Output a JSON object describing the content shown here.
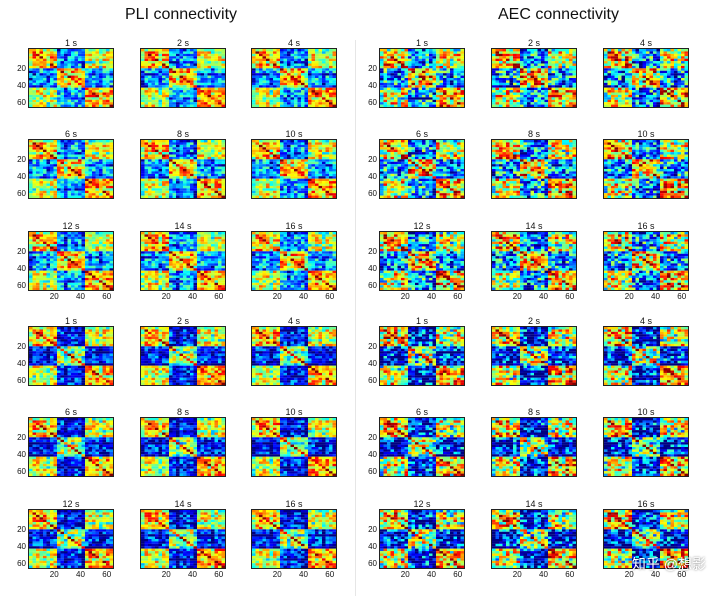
{
  "figure": {
    "titles": {
      "left": "PLI connectivity",
      "right": "AEC connectivity"
    },
    "watermark": "知乎 @想影"
  },
  "chart_data": [
    {
      "type": "heatmap",
      "title": "PLI connectivity",
      "block": "top",
      "colormap": "jet",
      "matrix_size": 64,
      "panel_titles": [
        "1 s",
        "2 s",
        "4 s",
        "6 s",
        "8 s",
        "10 s",
        "12 s",
        "14 s",
        "16 s"
      ],
      "y_ticks": [
        "20",
        "40",
        "60"
      ],
      "x_ticks": [
        "20",
        "40",
        "60"
      ]
    },
    {
      "type": "heatmap",
      "title": "AEC connectivity",
      "block": "top",
      "colormap": "jet",
      "matrix_size": 64,
      "panel_titles": [
        "1 s",
        "2 s",
        "4 s",
        "6 s",
        "8 s",
        "10 s",
        "12 s",
        "14 s",
        "16 s"
      ],
      "y_ticks": [
        "20",
        "40",
        "60"
      ],
      "x_ticks": [
        "20",
        "40",
        "60"
      ]
    },
    {
      "type": "heatmap",
      "title": "PLI connectivity",
      "block": "bottom",
      "colormap": "jet",
      "matrix_size": 64,
      "panel_titles": [
        "1 s",
        "2 s",
        "4 s",
        "6 s",
        "8 s",
        "10 s",
        "12 s",
        "14 s",
        "16 s"
      ],
      "y_ticks": [
        "20",
        "40",
        "60"
      ],
      "x_ticks": [
        "20",
        "40",
        "60"
      ]
    },
    {
      "type": "heatmap",
      "title": "AEC connectivity",
      "block": "bottom",
      "colormap": "jet",
      "matrix_size": 64,
      "panel_titles": [
        "1 s",
        "2 s",
        "4 s",
        "6 s",
        "8 s",
        "10 s",
        "12 s",
        "14 s",
        "16 s"
      ],
      "y_ticks": [
        "20",
        "40",
        "60"
      ],
      "x_ticks": [
        "20",
        "40",
        "60"
      ]
    }
  ]
}
